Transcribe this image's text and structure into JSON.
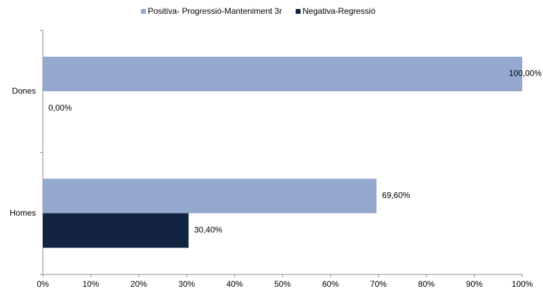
{
  "chart_data": {
    "type": "bar",
    "orientation": "horizontal",
    "categories": [
      "Dones",
      "Homes"
    ],
    "series": [
      {
        "name": "Positiva- Progressió-Manteniment 3r",
        "color": "#95a9d0",
        "values": [
          100,
          69.6
        ],
        "value_labels": [
          "100,00%",
          "69,60%"
        ]
      },
      {
        "name": "Negativa-Regressió",
        "color": "#12243f",
        "values": [
          0,
          30.4
        ],
        "value_labels": [
          "0,00%",
          "30,40%"
        ]
      }
    ],
    "xlim": [
      0,
      100
    ],
    "xticks": [
      {
        "value": 0,
        "label": "0%"
      },
      {
        "value": 10,
        "label": "10%"
      },
      {
        "value": 20,
        "label": "20%"
      },
      {
        "value": 30,
        "label": "30%"
      },
      {
        "value": 40,
        "label": "40%"
      },
      {
        "value": 50,
        "label": "50%"
      },
      {
        "value": 60,
        "label": "60%"
      },
      {
        "value": 70,
        "label": "70%"
      },
      {
        "value": 80,
        "label": "80%"
      },
      {
        "value": 90,
        "label": "90%"
      },
      {
        "value": 100,
        "label": "100%"
      }
    ],
    "legend": "top"
  }
}
